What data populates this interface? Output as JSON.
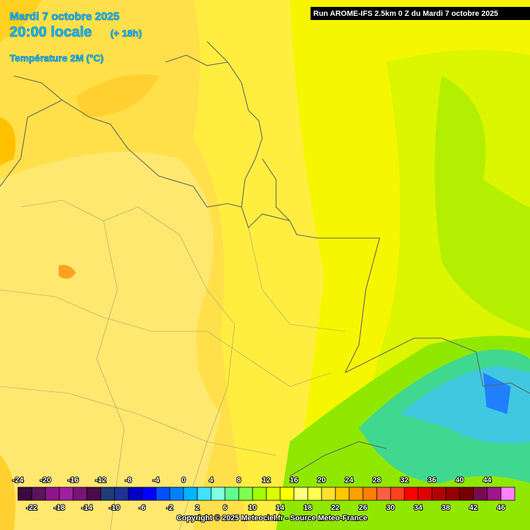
{
  "header": {
    "date": "Mardi 7 octobre 2025",
    "time": "20:00 locale",
    "lead": "(+ 18h)",
    "parameter": "Température 2M (°C)"
  },
  "run": "Run AROME-IFS 2.5km 0 Z du Mardi 7 octobre 2025",
  "legend": {
    "stops": [
      -24,
      -22,
      -20,
      -18,
      -16,
      -14,
      -12,
      -10,
      -8,
      -6,
      -4,
      -2,
      0,
      2,
      4,
      6,
      8,
      10,
      12,
      14,
      16,
      18,
      20,
      22,
      24,
      26,
      28,
      30,
      32,
      34,
      36,
      38,
      40,
      42,
      44,
      46
    ],
    "colors": [
      "#3c0a3c",
      "#5a145a",
      "#8c148c",
      "#a01ea0",
      "#781478",
      "#4b0a4b",
      "#1e3c78",
      "#1e3296",
      "#0000c8",
      "#0000ff",
      "#0050ff",
      "#0080ff",
      "#00b4ff",
      "#40e0ff",
      "#80ffe0",
      "#60ff90",
      "#80ff50",
      "#a0ff00",
      "#dcff00",
      "#ffff00",
      "#ffff80",
      "#ffff50",
      "#ffe030",
      "#ffc800",
      "#ffa000",
      "#ff8000",
      "#ff6040",
      "#ff4020",
      "#ff0000",
      "#e00000",
      "#b40000",
      "#960000",
      "#780000",
      "#780a50",
      "#a0148c",
      "#ff80ff"
    ]
  },
  "copyright": "Copyright © 2025 Meteociel.fr - Source Meteo-France"
}
